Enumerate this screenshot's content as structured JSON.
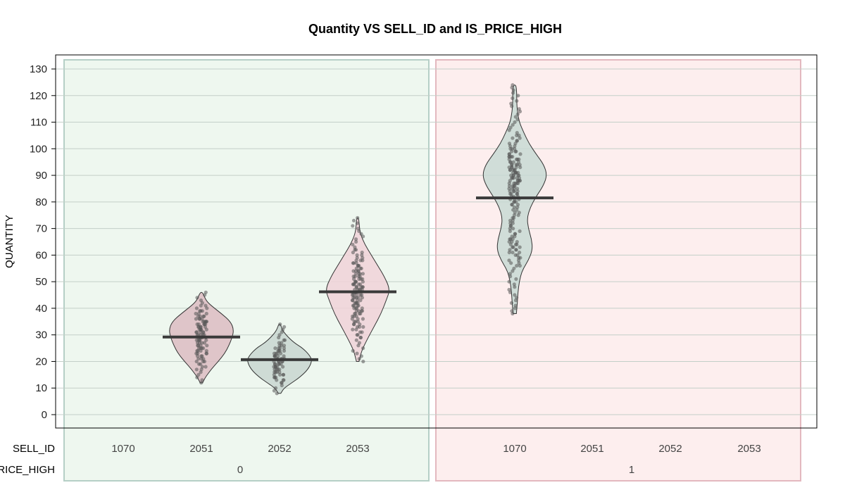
{
  "chart_data": {
    "type": "pirate",
    "title": "Quantity VS SELL_ID and IS_PRICE_HIGH",
    "ylabel": "QUANTITY",
    "ylim": [
      -5,
      135
    ],
    "yticks": [
      0,
      10,
      20,
      30,
      40,
      50,
      60,
      70,
      80,
      90,
      100,
      110,
      120,
      130
    ],
    "grid": true,
    "row_labels": [
      "SELL_ID",
      "IS_PRICE_HIGH"
    ],
    "groups": [
      {
        "label": "0",
        "background": "#eef7ef",
        "border": "#b5cfc6",
        "categories": [
          "1070",
          "2051",
          "2052",
          "2053"
        ]
      },
      {
        "label": "1",
        "background": "#fdeeee",
        "border": "#e3b8bf",
        "categories": [
          "1070",
          "2051",
          "2052",
          "2053"
        ]
      }
    ],
    "series": [
      {
        "group": "0",
        "sell_id": "2051",
        "mean": 29.2,
        "min": 12,
        "max": 46,
        "color": "#dcbcc2",
        "density": [
          [
            12,
            0.04
          ],
          [
            14,
            0.12
          ],
          [
            17,
            0.3
          ],
          [
            20,
            0.52
          ],
          [
            23,
            0.72
          ],
          [
            26,
            0.85
          ],
          [
            29,
            0.95
          ],
          [
            32,
            1.0
          ],
          [
            35,
            0.9
          ],
          [
            38,
            0.62
          ],
          [
            41,
            0.3
          ],
          [
            43,
            0.14
          ],
          [
            46,
            0.04
          ]
        ]
      },
      {
        "group": "0",
        "sell_id": "2052",
        "mean": 20.7,
        "min": 8,
        "max": 34,
        "color": "#c8d6d0",
        "density": [
          [
            8,
            0.04
          ],
          [
            10,
            0.14
          ],
          [
            12,
            0.38
          ],
          [
            14,
            0.62
          ],
          [
            17,
            0.88
          ],
          [
            20,
            1.0
          ],
          [
            22,
            0.95
          ],
          [
            25,
            0.72
          ],
          [
            27,
            0.45
          ],
          [
            30,
            0.2
          ],
          [
            32,
            0.08
          ],
          [
            34,
            0.03
          ]
        ]
      },
      {
        "group": "0",
        "sell_id": "2053",
        "mean": 46.2,
        "min": 20,
        "max": 74,
        "color": "#f0d2d8",
        "density": [
          [
            20,
            0.04
          ],
          [
            24,
            0.12
          ],
          [
            28,
            0.28
          ],
          [
            33,
            0.5
          ],
          [
            38,
            0.72
          ],
          [
            43,
            0.88
          ],
          [
            47,
            1.0
          ],
          [
            52,
            0.82
          ],
          [
            56,
            0.62
          ],
          [
            60,
            0.42
          ],
          [
            64,
            0.22
          ],
          [
            68,
            0.08
          ],
          [
            71,
            0.05
          ],
          [
            74,
            0.03
          ]
        ]
      },
      {
        "group": "1",
        "sell_id": "1070",
        "mean": 81.5,
        "min": 38,
        "max": 124,
        "color": "#c8d9d3",
        "density": [
          [
            38,
            0.05
          ],
          [
            42,
            0.08
          ],
          [
            46,
            0.1
          ],
          [
            50,
            0.14
          ],
          [
            54,
            0.22
          ],
          [
            58,
            0.42
          ],
          [
            62,
            0.55
          ],
          [
            66,
            0.52
          ],
          [
            70,
            0.42
          ],
          [
            74,
            0.38
          ],
          [
            78,
            0.48
          ],
          [
            82,
            0.66
          ],
          [
            86,
            0.88
          ],
          [
            90,
            1.0
          ],
          [
            94,
            0.9
          ],
          [
            98,
            0.66
          ],
          [
            102,
            0.44
          ],
          [
            106,
            0.28
          ],
          [
            110,
            0.14
          ],
          [
            114,
            0.08
          ],
          [
            118,
            0.06
          ],
          [
            121,
            0.06
          ],
          [
            124,
            0.04
          ]
        ]
      }
    ]
  }
}
